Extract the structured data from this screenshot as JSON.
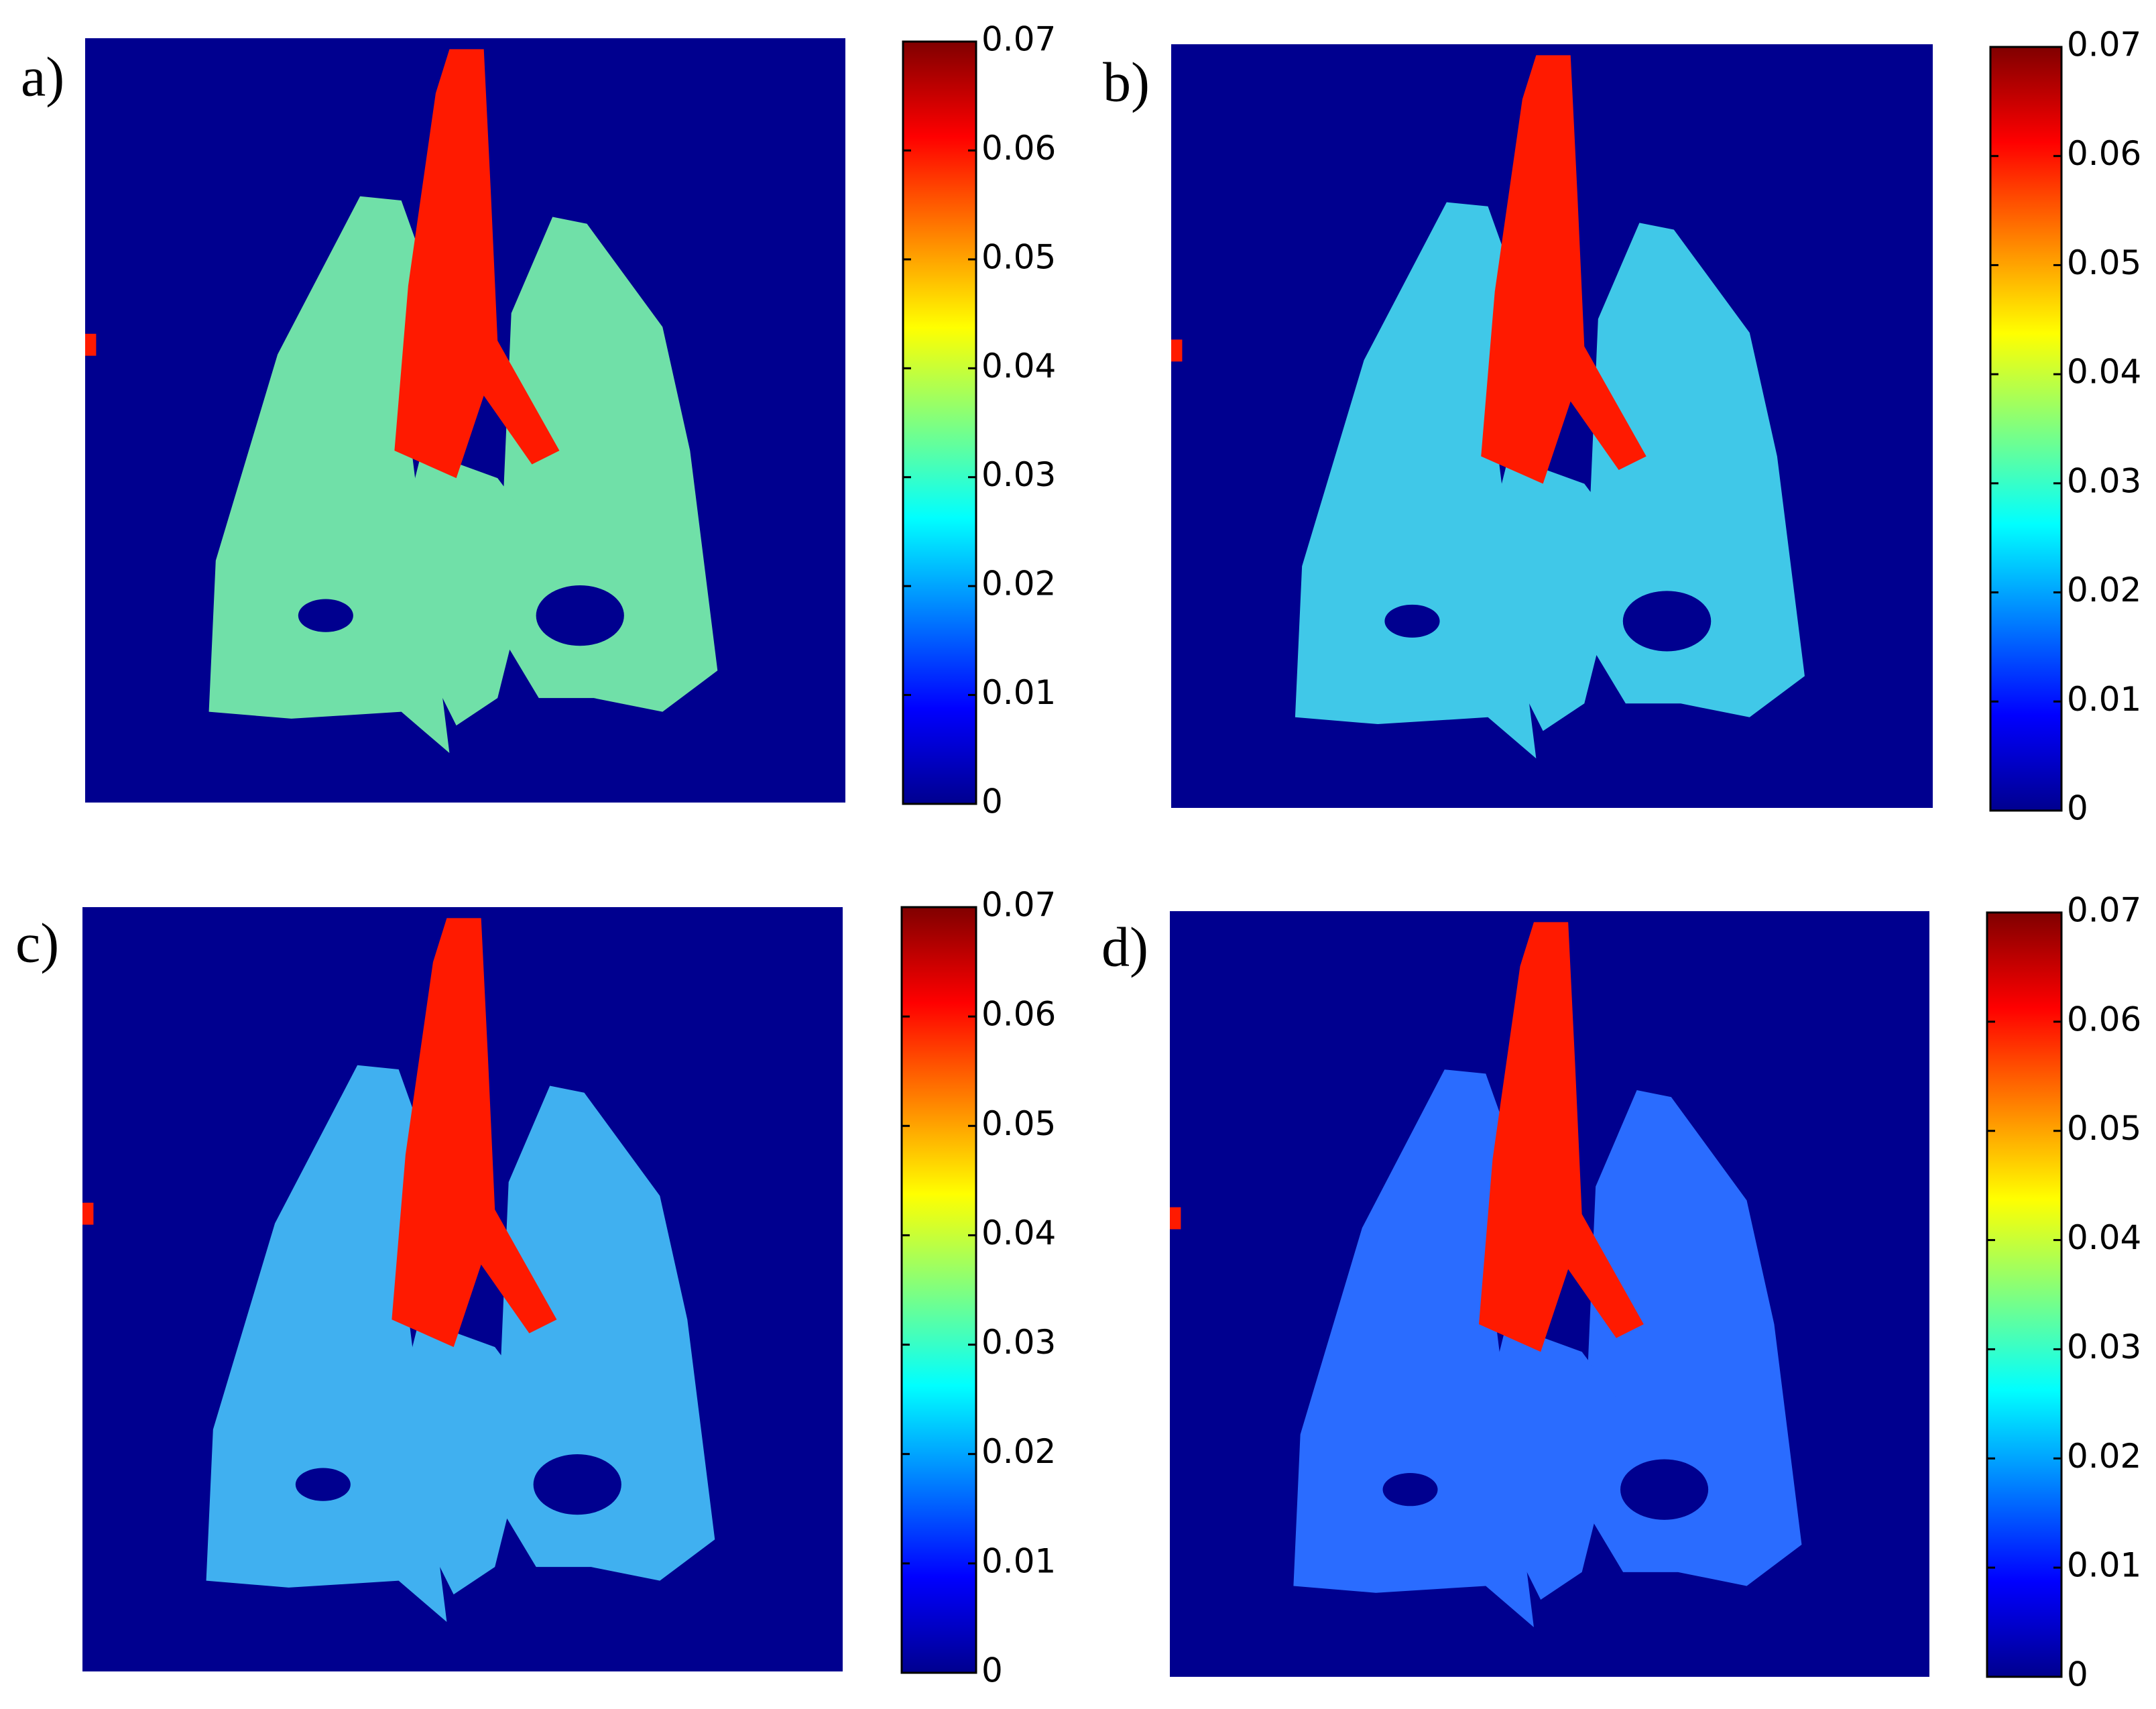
{
  "chart_data": [
    {
      "type": "heatmap",
      "title": "a)",
      "ylim": [
        0,
        0.07
      ],
      "yticks": [
        0,
        0.01,
        0.02,
        0.03,
        0.04,
        0.05,
        0.06,
        0.07
      ]
    },
    {
      "type": "heatmap",
      "title": "b)",
      "ylim": [
        0,
        0.07
      ],
      "yticks": [
        0,
        0.01,
        0.02,
        0.03,
        0.04,
        0.05,
        0.06,
        0.07
      ]
    },
    {
      "type": "heatmap",
      "title": "c)",
      "ylim": [
        0,
        0.07
      ],
      "yticks": [
        0,
        0.01,
        0.02,
        0.03,
        0.04,
        0.05,
        0.06,
        0.07
      ]
    },
    {
      "type": "heatmap",
      "title": "d)",
      "ylim": [
        0,
        0.07
      ],
      "yticks": [
        0,
        0.01,
        0.02,
        0.03,
        0.04,
        0.05,
        0.06,
        0.07
      ]
    }
  ]
}
